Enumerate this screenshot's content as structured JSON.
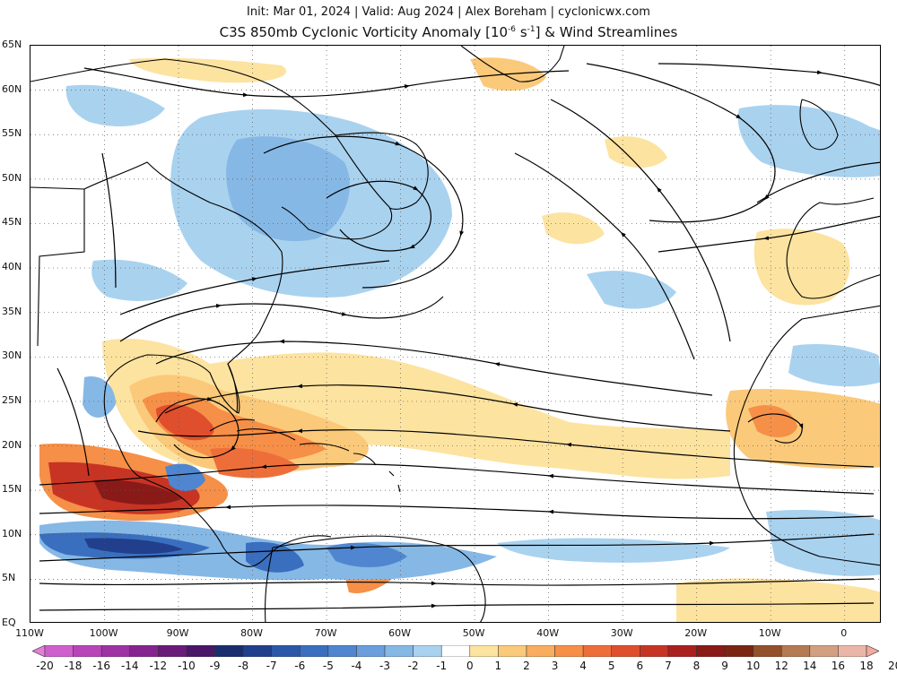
{
  "header": {
    "subtitle": "Init: Mar 01, 2024 | Valid: Aug 2024 | Alex Boreham | cyclonicwx.com",
    "title_main": "C3S 850mb Cyclonic Vorticity Anomaly [10",
    "title_exp1": "-6",
    "title_mid": " s",
    "title_exp2": "-1",
    "title_end": "] & Wind Streamlines"
  },
  "axes": {
    "lat_labels": [
      "65N",
      "60N",
      "55N",
      "50N",
      "45N",
      "40N",
      "35N",
      "30N",
      "25N",
      "20N",
      "15N",
      "10N",
      "5N",
      "EQ"
    ],
    "lon_labels": [
      "110W",
      "100W",
      "90W",
      "80W",
      "70W",
      "60W",
      "50W",
      "40W",
      "30W",
      "20W",
      "10W",
      "0"
    ],
    "lat_range": [
      0,
      65
    ],
    "lon_range": [
      -110,
      5
    ]
  },
  "colorbar": {
    "labels": [
      "-20",
      "-18",
      "-16",
      "-14",
      "-12",
      "-10",
      "-9",
      "-8",
      "-7",
      "-6",
      "-5",
      "-4",
      "-3",
      "-2",
      "-1",
      "0",
      "1",
      "2",
      "3",
      "4",
      "5",
      "6",
      "7",
      "8",
      "9",
      "10",
      "12",
      "14",
      "16",
      "18",
      "20"
    ],
    "colors": [
      "#e27fd8",
      "#cf5fcc",
      "#b845b8",
      "#9e32a4",
      "#86248f",
      "#6a1a78",
      "#4a1668",
      "#1a2d6e",
      "#213f8c",
      "#2b57a8",
      "#3a6fbf",
      "#4f86cf",
      "#6a9fdc",
      "#86b8e6",
      "#a9d2ef",
      "#ffffff",
      "#fde3a0",
      "#fbc97a",
      "#f9ad5e",
      "#f68f47",
      "#ee6e3a",
      "#df4f2e",
      "#c73424",
      "#a9201d",
      "#8a1a18",
      "#7a2512",
      "#93502a",
      "#b47a52",
      "#d29f80",
      "#e9b6a8",
      "#f3a8a0"
    ]
  },
  "map": {
    "field": "850mb cyclonic vorticity anomaly",
    "overlay": "wind streamlines"
  }
}
